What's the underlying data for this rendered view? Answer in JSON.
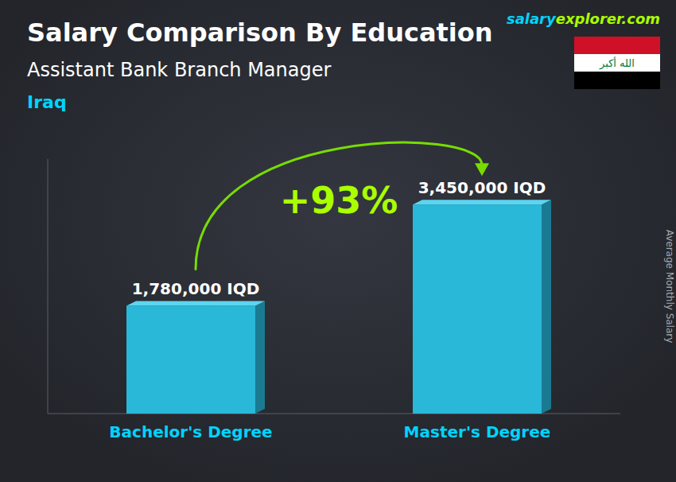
{
  "chart_data": {
    "type": "bar",
    "title": "Salary Comparison By Education",
    "subtitle": "Assistant Bank Branch Manager",
    "y_label": "Average Monthly Salary",
    "categories": [
      "Bachelor's Degree",
      "Master's Degree"
    ],
    "values": [
      1780000,
      3450000
    ],
    "value_labels": [
      "1,780,000 IQD",
      "3,450,000 IQD"
    ],
    "data_labels": true,
    "color": "#29b8d8",
    "ylim": [
      0,
      4200000
    ],
    "tick_labels": "x",
    "grid": false,
    "annotations": [
      "Iraq",
      "salary",
      "explorer.com",
      "+93%",
      "الله أكبر"
    ]
  }
}
